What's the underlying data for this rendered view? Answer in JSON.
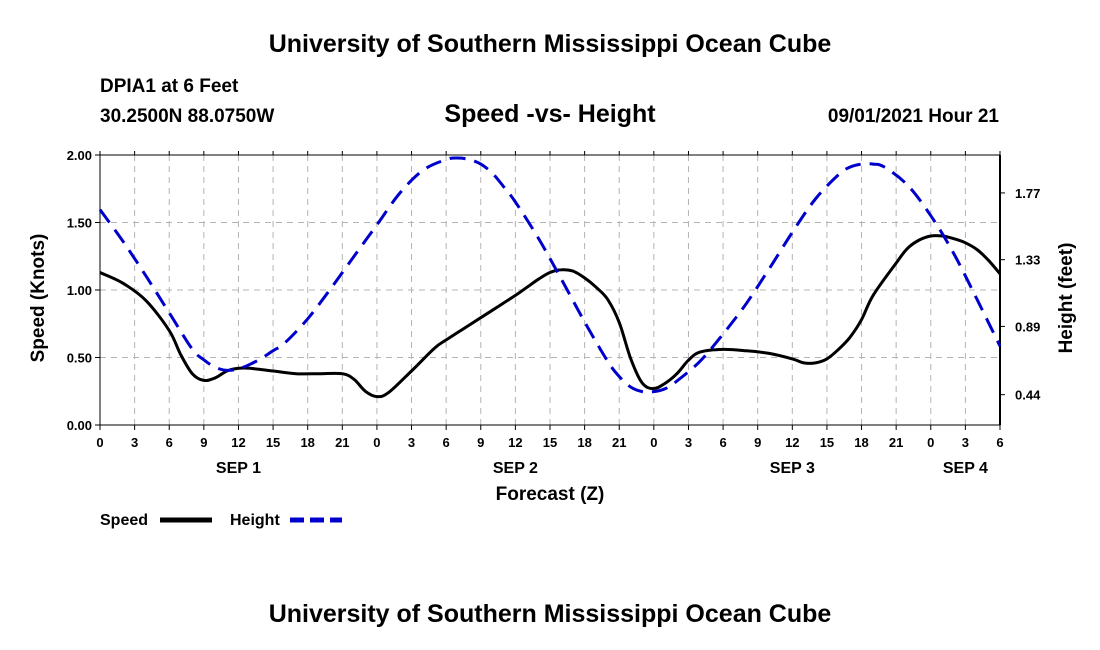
{
  "header": {
    "title": "University of Southern Mississippi Ocean Cube",
    "station": "DPIA1 at 6 Feet",
    "coords": "30.2500N  88.0750W",
    "chart_title": "Speed -vs- Height",
    "datetime": "09/01/2021 Hour 21"
  },
  "footer": {
    "title": "University of Southern Mississippi Ocean Cube"
  },
  "colors": {
    "speed": "#000000",
    "height": "#0000cc",
    "grid": "#b4b4b4"
  },
  "chart_data": {
    "type": "line",
    "title": "Speed -vs- Height",
    "xlabel": "Forecast (Z)",
    "ylabel": "Speed (Knots)",
    "y2label": "Height (feet)",
    "xlim": [
      0,
      78
    ],
    "ylim": [
      0,
      2
    ],
    "y2lim": [
      0.24,
      2.02
    ],
    "x_ticks": [
      0,
      3,
      6,
      9,
      12,
      15,
      18,
      21,
      24,
      27,
      30,
      33,
      36,
      39,
      42,
      45,
      48,
      51,
      54,
      57,
      60,
      63,
      66,
      69,
      72,
      75,
      78
    ],
    "x_tick_labels": [
      "0",
      "3",
      "6",
      "9",
      "12",
      "15",
      "18",
      "21",
      "0",
      "3",
      "6",
      "9",
      "12",
      "15",
      "18",
      "21",
      "0",
      "3",
      "6",
      "9",
      "12",
      "15",
      "18",
      "21",
      "0",
      "3",
      "6"
    ],
    "y_ticks": [
      0,
      0.5,
      1,
      1.5,
      2
    ],
    "y_tick_labels": [
      "0.00",
      "0.50",
      "1.00",
      "1.50",
      "2.00"
    ],
    "y2_ticks": [
      0.44,
      0.89,
      1.33,
      1.77
    ],
    "y2_tick_labels": [
      "0.44",
      "0.89",
      "1.33",
      "1.77"
    ],
    "day_labels": [
      {
        "x": 12,
        "label": "SEP 1"
      },
      {
        "x": 36,
        "label": "SEP 2"
      },
      {
        "x": 60,
        "label": "SEP 3"
      },
      {
        "x": 75,
        "label": "SEP 4"
      }
    ],
    "series": [
      {
        "name": "Speed",
        "axis": "left",
        "style": "solid",
        "x": [
          0,
          2,
          4,
          6,
          7,
          8,
          9,
          10,
          11,
          12,
          13,
          15,
          17,
          19,
          21,
          22,
          23,
          24,
          25,
          27,
          29,
          30,
          32,
          34,
          36,
          37,
          38,
          39,
          40,
          41,
          42,
          43,
          44,
          45,
          46,
          47,
          48,
          49,
          50,
          51,
          52,
          54,
          56,
          58,
          60,
          61,
          62,
          63,
          64,
          65,
          66,
          67,
          69,
          70,
          71,
          72,
          73,
          74,
          75,
          76,
          77,
          78
        ],
        "values": [
          1.13,
          1.05,
          0.92,
          0.7,
          0.52,
          0.38,
          0.33,
          0.35,
          0.4,
          0.42,
          0.42,
          0.4,
          0.38,
          0.38,
          0.38,
          0.34,
          0.25,
          0.21,
          0.24,
          0.4,
          0.57,
          0.63,
          0.74,
          0.85,
          0.96,
          1.02,
          1.08,
          1.13,
          1.15,
          1.14,
          1.09,
          1.02,
          0.93,
          0.76,
          0.49,
          0.31,
          0.27,
          0.31,
          0.38,
          0.48,
          0.54,
          0.56,
          0.55,
          0.53,
          0.49,
          0.46,
          0.46,
          0.49,
          0.56,
          0.65,
          0.78,
          0.96,
          1.2,
          1.31,
          1.37,
          1.4,
          1.4,
          1.38,
          1.35,
          1.3,
          1.22,
          1.12
        ]
      },
      {
        "name": "Height",
        "axis": "right",
        "style": "dashed",
        "x": [
          0,
          2,
          4,
          6,
          8,
          9,
          10,
          11,
          12,
          13,
          14,
          15,
          16,
          18,
          20,
          22,
          24,
          26,
          28,
          30,
          31,
          32,
          33,
          34,
          35,
          36,
          38,
          40,
          42,
          44,
          45,
          46,
          47,
          48,
          49,
          50,
          52,
          54,
          56,
          58,
          60,
          62,
          64,
          65,
          66,
          67,
          68,
          70,
          72,
          74,
          76,
          78
        ],
        "values": [
          1.66,
          1.45,
          1.22,
          0.98,
          0.74,
          0.67,
          0.62,
          0.6,
          0.61,
          0.64,
          0.68,
          0.73,
          0.78,
          0.94,
          1.14,
          1.35,
          1.56,
          1.77,
          1.92,
          1.99,
          2.0,
          1.99,
          1.96,
          1.9,
          1.81,
          1.71,
          1.47,
          1.2,
          0.92,
          0.66,
          0.56,
          0.49,
          0.46,
          0.46,
          0.48,
          0.53,
          0.66,
          0.84,
          1.04,
          1.27,
          1.51,
          1.73,
          1.89,
          1.94,
          1.96,
          1.96,
          1.94,
          1.82,
          1.62,
          1.37,
          1.07,
          0.76
        ]
      }
    ],
    "legend": [
      {
        "label": "Speed",
        "style": "solid"
      },
      {
        "label": "Height",
        "style": "dashed"
      }
    ],
    "legend_position": "bottom-left"
  }
}
